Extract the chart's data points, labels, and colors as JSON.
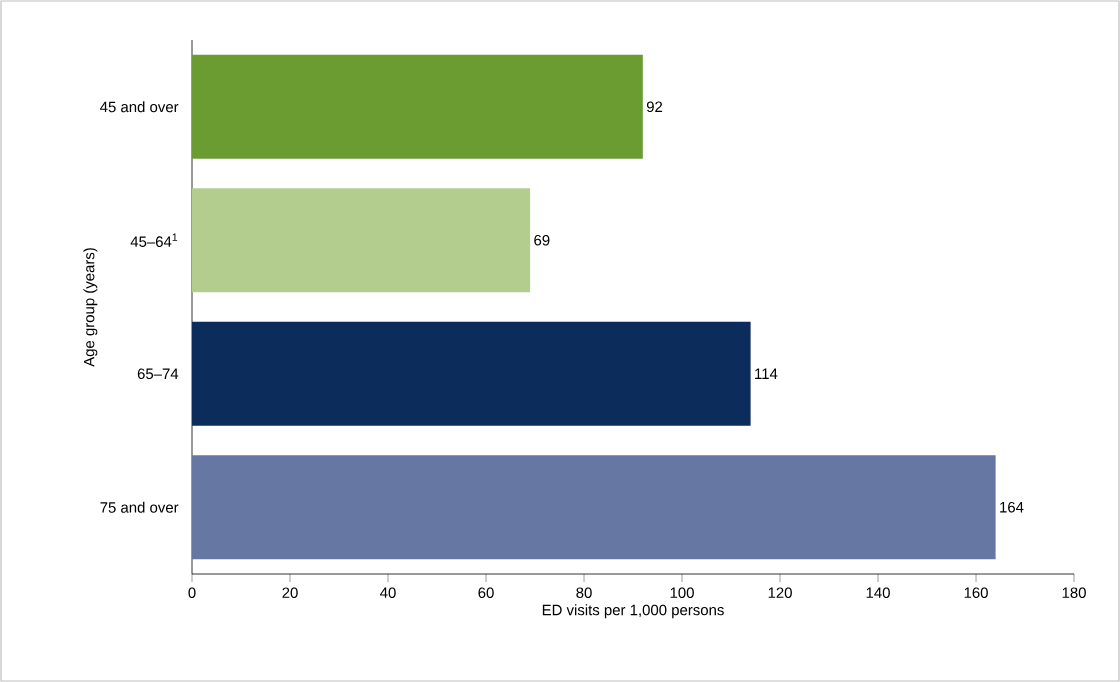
{
  "chart_data": {
    "type": "bar",
    "orientation": "horizontal",
    "xlabel": "ED visits per 1,000 persons",
    "ylabel": "Age group (years)",
    "categories": [
      "45 and over",
      "45–64$^{1}$",
      "65–74",
      "75 and over"
    ],
    "values": [
      92,
      69,
      114,
      164
    ],
    "colors": [
      "#6a9c32",
      "#b3cd8e",
      "#0c2c5c",
      "#6577a2"
    ],
    "xlim": [
      0,
      180
    ],
    "xticks": [
      0,
      20,
      40,
      60,
      80,
      100,
      120,
      140,
      160,
      180
    ],
    "data_labels": true
  }
}
